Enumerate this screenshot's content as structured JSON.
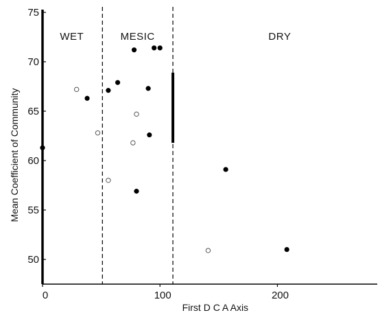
{
  "chart_data": {
    "type": "scatter",
    "title": "",
    "xlabel": "First D C A  Axis",
    "ylabel": "Mean Coefficient of Community",
    "xlim": [
      0,
      285
    ],
    "ylim": [
      47.5,
      75
    ],
    "x_ticks": [
      0,
      100,
      200
    ],
    "x_tick_labels": [
      "0",
      "100",
      "200"
    ],
    "y_ticks": [
      50,
      55,
      60,
      65,
      70,
      75
    ],
    "y_tick_labels": [
      "50",
      "55",
      "60",
      "65",
      "70",
      "75"
    ],
    "grid": false,
    "region_boundaries": [
      51,
      111
    ],
    "regions": [
      {
        "label": "WET",
        "x": 25
      },
      {
        "label": "MESIC",
        "x": 81
      },
      {
        "label": "DRY",
        "x": 202
      }
    ],
    "series": [
      {
        "marker": "filled",
        "points": [
          [
            0,
            61.3
          ],
          [
            38,
            66.3
          ],
          [
            56,
            67.1
          ],
          [
            64,
            67.9
          ],
          [
            78,
            71.2
          ],
          [
            80,
            56.9
          ],
          [
            90,
            67.3
          ],
          [
            91,
            62.6
          ],
          [
            95,
            71.4
          ],
          [
            100,
            71.4
          ],
          [
            156,
            59.1
          ],
          [
            208,
            51.0
          ]
        ]
      },
      {
        "marker": "open",
        "points": [
          [
            29,
            67.2
          ],
          [
            47,
            62.8
          ],
          [
            56,
            58.0
          ],
          [
            77,
            61.8
          ],
          [
            80,
            64.7
          ],
          [
            141,
            50.9
          ]
        ]
      }
    ],
    "annotations": [
      {
        "type": "vertical_bar",
        "x": 111,
        "y_range": [
          61.8,
          68.9
        ]
      }
    ]
  }
}
